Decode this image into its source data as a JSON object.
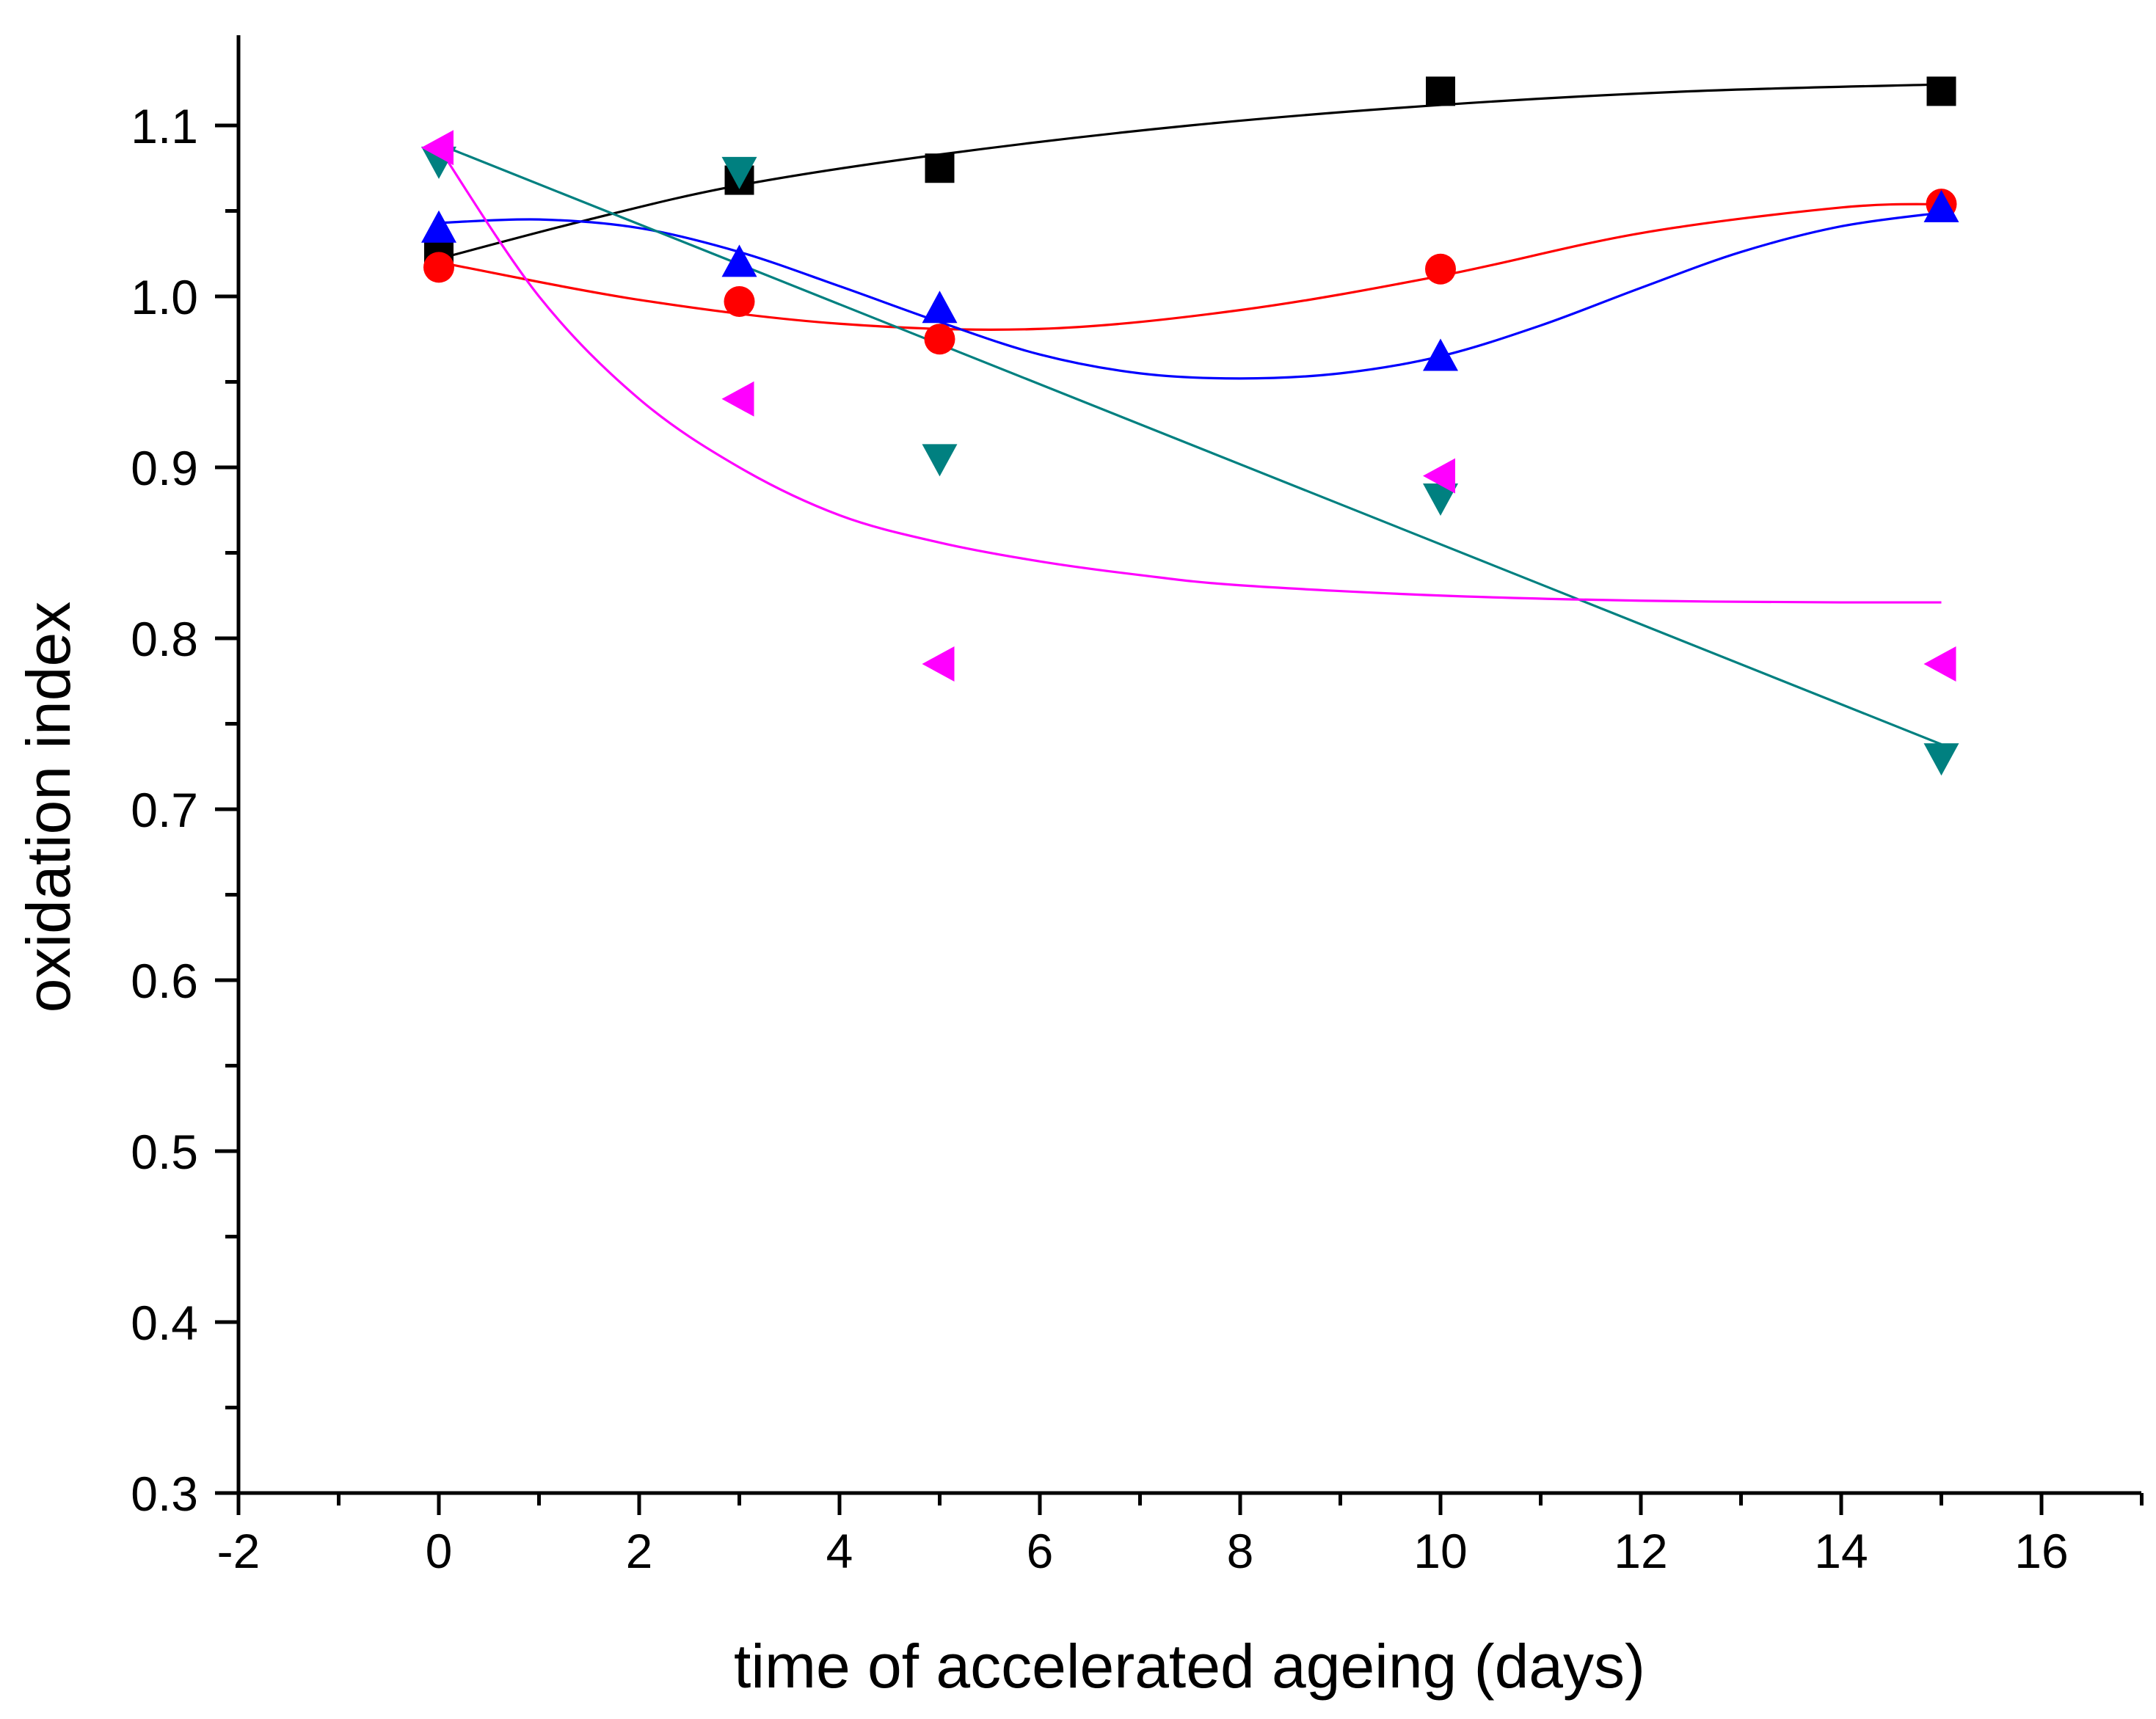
{
  "chart_data": {
    "type": "scatter",
    "title": "",
    "xlabel": "time of accelerated ageing (days)",
    "ylabel": "oxidation index",
    "xlim": [
      -2,
      17
    ],
    "ylim": [
      0.3,
      1.15
    ],
    "x_major_ticks": [
      -2,
      0,
      2,
      4,
      6,
      8,
      10,
      12,
      14,
      16
    ],
    "x_tick_labels": [
      "-2",
      "0",
      "2",
      "4",
      "6",
      "8",
      "10",
      "12",
      "14",
      "16"
    ],
    "y_major_ticks": [
      0.3,
      0.4,
      0.5,
      0.6,
      0.7,
      0.8,
      0.9,
      1.0,
      1.1
    ],
    "y_tick_labels": [
      "0.3",
      "0.4",
      "0.5",
      "0.6",
      "0.7",
      "0.8",
      "0.9",
      "1.0",
      "1.1"
    ],
    "grid": false,
    "legend": "none",
    "x": [
      0,
      3,
      5,
      10,
      15
    ],
    "series": [
      {
        "name": "series-1",
        "marker": "square",
        "color": "#000000",
        "values": [
          1.026,
          1.068,
          1.075,
          1.12,
          1.12
        ],
        "fit": [
          [
            0,
            1.022
          ],
          [
            1.5,
            1.045
          ],
          [
            3,
            1.065
          ],
          [
            5,
            1.083
          ],
          [
            7.5,
            1.1
          ],
          [
            10,
            1.112
          ],
          [
            12.5,
            1.12
          ],
          [
            15,
            1.124
          ]
        ]
      },
      {
        "name": "series-2",
        "marker": "circle",
        "color": "#ff0000",
        "values": [
          1.017,
          0.997,
          0.975,
          1.016,
          1.054
        ],
        "fit": [
          [
            0,
            1.02
          ],
          [
            2,
            0.998
          ],
          [
            4,
            0.984
          ],
          [
            6,
            0.981
          ],
          [
            8,
            0.992
          ],
          [
            10,
            1.012
          ],
          [
            12,
            1.037
          ],
          [
            14,
            1.052
          ],
          [
            15,
            1.054
          ]
        ]
      },
      {
        "name": "series-3",
        "marker": "triangle-up",
        "color": "#0000ff",
        "values": [
          1.04,
          1.02,
          0.993,
          0.965,
          1.052
        ],
        "fit": [
          [
            0,
            1.043
          ],
          [
            1,
            1.045
          ],
          [
            2,
            1.04
          ],
          [
            3,
            1.026
          ],
          [
            4,
            1.006
          ],
          [
            5,
            0.985
          ],
          [
            6,
            0.966
          ],
          [
            7,
            0.955
          ],
          [
            8,
            0.952
          ],
          [
            9,
            0.955
          ],
          [
            10,
            0.965
          ],
          [
            11,
            0.983
          ],
          [
            12,
            1.005
          ],
          [
            13,
            1.026
          ],
          [
            14,
            1.041
          ],
          [
            15,
            1.049
          ]
        ]
      },
      {
        "name": "series-4",
        "marker": "triangle-down",
        "color": "#008080",
        "values": [
          1.079,
          1.073,
          0.905,
          0.882,
          0.73
        ],
        "fit": [
          [
            0,
            1.089
          ],
          [
            15,
            0.738
          ]
        ]
      },
      {
        "name": "series-5",
        "marker": "triangle-left",
        "color": "#ff00ff",
        "values": [
          1.087,
          0.94,
          0.785,
          0.895,
          0.785
        ],
        "fit": [
          [
            0,
            1.087
          ],
          [
            1,
            1.0
          ],
          [
            2,
            0.94
          ],
          [
            3,
            0.9
          ],
          [
            4,
            0.872
          ],
          [
            5,
            0.856
          ],
          [
            6,
            0.845
          ],
          [
            7,
            0.837
          ],
          [
            8,
            0.831
          ],
          [
            10,
            0.825
          ],
          [
            12,
            0.822
          ],
          [
            14,
            0.821
          ],
          [
            15,
            0.821
          ]
        ]
      }
    ]
  }
}
